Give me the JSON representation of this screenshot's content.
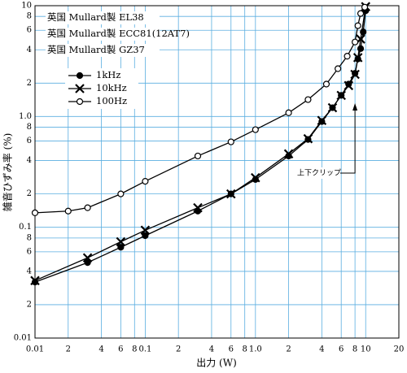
{
  "chart_data": {
    "type": "line",
    "notes": [
      "英国 Mullard製 EL38",
      "英国 Mullard製 ECC81(12AT7)",
      "英国 Mullard製 GZ37"
    ],
    "xlabel": "出力 (W)",
    "ylabel": "雑音ひずみ率 (%)",
    "annotation": "上下クリップ",
    "xscale": "log",
    "yscale": "log",
    "grid": true,
    "grid_color": "#5aaee0",
    "xlim": [
      0.01,
      20
    ],
    "ylim": [
      0.01,
      10
    ],
    "xticks": [
      0.01,
      {
        "value": 0.02,
        "label": "2"
      },
      {
        "value": 0.04,
        "label": "4"
      },
      {
        "value": 0.06,
        "label": "6"
      },
      {
        "value": 0.08,
        "label": "8"
      },
      0.1,
      {
        "value": 0.2,
        "label": "2"
      },
      {
        "value": 0.4,
        "label": "4"
      },
      {
        "value": 0.6,
        "label": "6"
      },
      {
        "value": 0.8,
        "label": "8"
      },
      {
        "value": 1,
        "label": "1.0"
      },
      2,
      4,
      6,
      8,
      10,
      20
    ],
    "yticks": [
      0.01,
      {
        "value": 0.02,
        "label": "2"
      },
      {
        "value": 0.04,
        "label": "4"
      },
      {
        "value": 0.06,
        "label": "6"
      },
      {
        "value": 0.08,
        "label": "8"
      },
      0.1,
      {
        "value": 0.2,
        "label": "2"
      },
      {
        "value": 0.4,
        "label": "4"
      },
      {
        "value": 0.6,
        "label": "6"
      },
      {
        "value": 0.8,
        "label": "8"
      },
      {
        "value": 1,
        "label": "1.0"
      },
      2,
      4,
      6,
      8,
      10
    ],
    "legend": "upper left",
    "series": [
      {
        "name": "1kHz",
        "marker": "filled-circle",
        "color": "#000000",
        "x": [
          0.01,
          0.03,
          0.06,
          0.1,
          0.3,
          0.6,
          1,
          2,
          3,
          4,
          5,
          6,
          7,
          8,
          8.5,
          9,
          9.5,
          10
        ],
        "values": [
          0.032,
          0.048,
          0.066,
          0.084,
          0.14,
          0.2,
          0.27,
          0.44,
          0.62,
          0.9,
          1.2,
          1.55,
          1.96,
          2.45,
          3.3,
          4.1,
          5.8,
          9
        ]
      },
      {
        "name": "10kHz",
        "marker": "x",
        "color": "#000000",
        "x": [
          0.01,
          0.03,
          0.06,
          0.1,
          0.3,
          0.6,
          1,
          2,
          3,
          4,
          5,
          6,
          7,
          8,
          8.5,
          9,
          10
        ],
        "values": [
          0.033,
          0.053,
          0.074,
          0.094,
          0.15,
          0.2,
          0.28,
          0.46,
          0.63,
          0.92,
          1.2,
          1.55,
          1.9,
          2.4,
          3.4,
          5,
          9.8
        ]
      },
      {
        "name": "100Hz",
        "marker": "open-circle",
        "color": "#000000",
        "x": [
          0.01,
          0.02,
          0.03,
          0.06,
          0.1,
          0.3,
          0.6,
          1,
          2,
          3,
          4.4,
          5.6,
          6.8,
          8,
          8.5,
          9,
          9.8
        ],
        "values": [
          0.135,
          0.14,
          0.15,
          0.2,
          0.26,
          0.44,
          0.59,
          0.76,
          1.08,
          1.42,
          1.96,
          2.7,
          3.5,
          4.7,
          6.6,
          8.5,
          9.7
        ]
      }
    ]
  }
}
